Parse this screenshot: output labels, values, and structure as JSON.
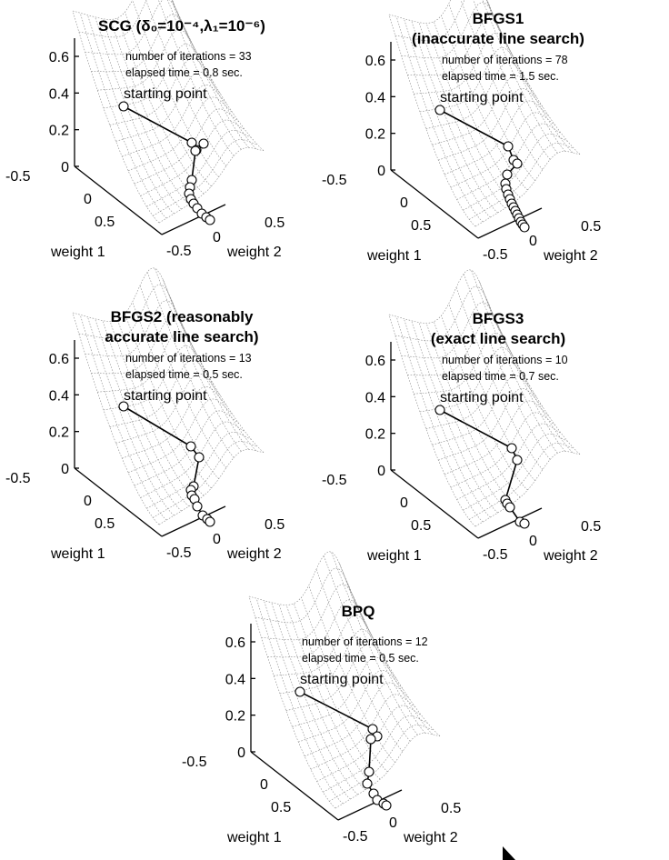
{
  "chart_data": [
    {
      "type": "surface",
      "title_lines": [
        "SCG (δ₀=10⁻⁴,λ₁=10⁻⁶)"
      ],
      "annotation_lines": [
        "number of iterations = 33",
        "elapsed time = 0.8 sec."
      ],
      "start_label": "starting point",
      "iterations": 33,
      "elapsed_time_sec": 0.8,
      "xlabel": "weight 1",
      "ylabel": "weight 2",
      "x_ticks": [
        "-0.5",
        "0",
        "0.5"
      ],
      "y_ticks": [
        "-0.5",
        "0",
        "0.5"
      ],
      "z_ticks": [
        "0",
        "0.2",
        "0.4",
        "0.6"
      ],
      "zlim": [
        0,
        0.7
      ],
      "grid": false,
      "legend": "none"
    },
    {
      "type": "surface",
      "title_lines": [
        "BFGS1",
        "(inaccurate line search)"
      ],
      "annotation_lines": [
        "number of iterations = 78",
        "elapsed time = 1.5 sec."
      ],
      "start_label": "starting point",
      "iterations": 78,
      "elapsed_time_sec": 1.5,
      "xlabel": "weight 1",
      "ylabel": "weight 2",
      "x_ticks": [
        "-0.5",
        "0",
        "0.5"
      ],
      "y_ticks": [
        "-0.5",
        "0",
        "0.5"
      ],
      "z_ticks": [
        "0",
        "0.2",
        "0.4",
        "0.6"
      ],
      "zlim": [
        0,
        0.7
      ],
      "grid": false,
      "legend": "none"
    },
    {
      "type": "surface",
      "title_lines": [
        "BFGS2 (reasonably",
        "accurate line search)"
      ],
      "annotation_lines": [
        "number of iterations = 13",
        "elapsed time = 0.5 sec."
      ],
      "start_label": "starting point",
      "iterations": 13,
      "elapsed_time_sec": 0.5,
      "xlabel": "weight 1",
      "ylabel": "weight 2",
      "x_ticks": [
        "-0.5",
        "0",
        "0.5"
      ],
      "y_ticks": [
        "-0.5",
        "0",
        "0.5"
      ],
      "z_ticks": [
        "0",
        "0.2",
        "0.4",
        "0.6"
      ],
      "zlim": [
        0,
        0.7
      ],
      "grid": false,
      "legend": "none"
    },
    {
      "type": "surface",
      "title_lines": [
        "BFGS3",
        "(exact line search)"
      ],
      "annotation_lines": [
        "number of iterations = 10",
        "elapsed time = 0.7 sec."
      ],
      "start_label": "starting point",
      "iterations": 10,
      "elapsed_time_sec": 0.7,
      "xlabel": "weight 1",
      "ylabel": "weight 2",
      "x_ticks": [
        "-0.5",
        "0",
        "0.5"
      ],
      "y_ticks": [
        "-0.5",
        "0",
        "0.5"
      ],
      "z_ticks": [
        "0",
        "0.2",
        "0.4",
        "0.6"
      ],
      "zlim": [
        0,
        0.7
      ],
      "grid": false,
      "legend": "none"
    },
    {
      "type": "surface",
      "title_lines": [
        "BPQ"
      ],
      "annotation_lines": [
        "number of iterations = 12",
        "elapsed time = 0.5 sec."
      ],
      "start_label": "starting point",
      "iterations": 12,
      "elapsed_time_sec": 0.5,
      "xlabel": "weight 1",
      "ylabel": "weight 2",
      "x_ticks": [
        "-0.5",
        "0",
        "0.5"
      ],
      "y_ticks": [
        "-0.5",
        "0",
        "0.5"
      ],
      "z_ticks": [
        "0",
        "0.2",
        "0.4",
        "0.6"
      ],
      "zlim": [
        0,
        0.7
      ],
      "grid": false,
      "legend": "none"
    }
  ],
  "colors": {
    "background": "#ffffff",
    "ink": "#000000",
    "mesh": "#8a8a8a"
  }
}
